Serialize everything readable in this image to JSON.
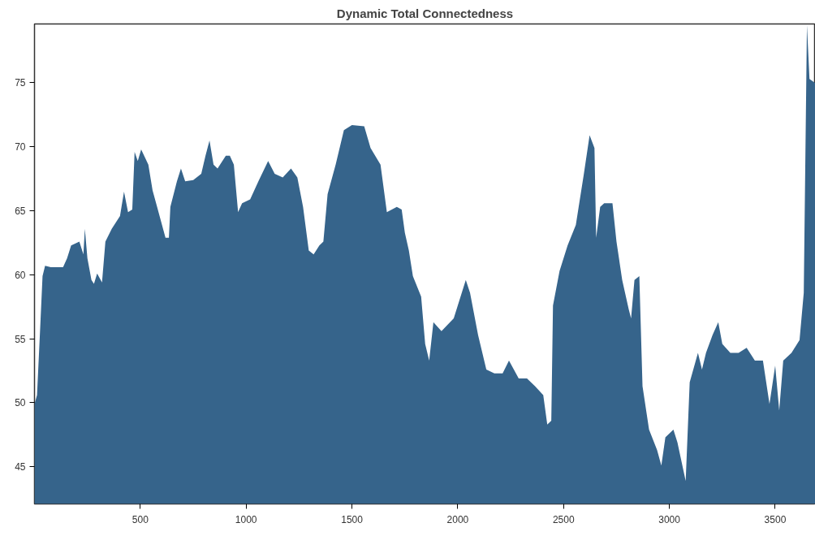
{
  "chart_data": {
    "type": "area",
    "title": "Dynamic Total Connectedness",
    "x": [
      0,
      12,
      27,
      38,
      50,
      77,
      135,
      154,
      173,
      212,
      231,
      238,
      250,
      269,
      281,
      296,
      319,
      335,
      365,
      404,
      423,
      442,
      462,
      473,
      488,
      504,
      538,
      558,
      596,
      619,
      635,
      642,
      673,
      692,
      712,
      750,
      788,
      808,
      827,
      846,
      865,
      904,
      923,
      942,
      962,
      981,
      1019,
      1058,
      1104,
      1135,
      1173,
      1212,
      1242,
      1269,
      1296,
      1319,
      1346,
      1365,
      1385,
      1423,
      1462,
      1500,
      1558,
      1588,
      1635,
      1665,
      1712,
      1735,
      1750,
      1769,
      1788,
      1827,
      1846,
      1865,
      1885,
      1923,
      1981,
      2000,
      2038,
      2058,
      2096,
      2135,
      2173,
      2212,
      2242,
      2288,
      2327,
      2365,
      2404,
      2423,
      2442,
      2450,
      2481,
      2519,
      2558,
      2596,
      2623,
      2646,
      2654,
      2673,
      2692,
      2731,
      2750,
      2777,
      2808,
      2819,
      2835,
      2858,
      2873,
      2904,
      2942,
      2962,
      2981,
      3019,
      3038,
      3077,
      3096,
      3135,
      3154,
      3173,
      3204,
      3231,
      3250,
      3288,
      3327,
      3365,
      3404,
      3442,
      3473,
      3500,
      3519,
      3538,
      3577,
      3615,
      3635,
      3650,
      3662,
      3688
    ],
    "series": [
      {
        "color": "#36648b",
        "values": [
          49.9,
          50.6,
          55.9,
          59.9,
          60.7,
          60.6,
          60.6,
          61.3,
          62.3,
          62.6,
          61.6,
          63.6,
          61.3,
          59.6,
          59.3,
          60.1,
          59.4,
          62.6,
          63.6,
          64.6,
          66.5,
          64.9,
          65.1,
          69.6,
          68.9,
          69.8,
          68.6,
          66.6,
          64.3,
          62.9,
          62.9,
          65.3,
          67.3,
          68.3,
          67.3,
          67.4,
          67.9,
          69.3,
          70.5,
          68.6,
          68.3,
          69.3,
          69.3,
          68.6,
          64.9,
          65.6,
          65.9,
          67.3,
          68.9,
          67.9,
          67.6,
          68.3,
          67.6,
          65.3,
          61.9,
          61.6,
          62.3,
          62.6,
          66.3,
          68.6,
          71.3,
          71.7,
          71.6,
          69.9,
          68.6,
          64.9,
          65.3,
          65.1,
          63.3,
          61.9,
          59.9,
          58.3,
          54.6,
          53.3,
          56.3,
          55.6,
          56.6,
          57.6,
          59.6,
          58.6,
          55.3,
          52.6,
          52.3,
          52.3,
          53.3,
          51.9,
          51.9,
          51.3,
          50.6,
          48.3,
          48.6,
          57.6,
          60.3,
          62.3,
          63.9,
          67.9,
          70.9,
          69.9,
          62.9,
          65.3,
          65.6,
          65.6,
          62.6,
          59.6,
          57.3,
          56.6,
          59.6,
          59.9,
          51.3,
          47.9,
          46.3,
          45.1,
          47.3,
          47.9,
          46.9,
          43.9,
          51.6,
          53.9,
          52.6,
          53.9,
          55.3,
          56.3,
          54.6,
          53.9,
          53.9,
          54.3,
          53.3,
          53.3,
          49.9,
          52.9,
          49.4,
          53.3,
          53.9,
          54.9,
          58.6,
          79.5,
          75.3,
          75.0
        ]
      }
    ],
    "xlim": [
      0,
      3690
    ],
    "ylim": [
      42.1,
      79.6
    ],
    "xticks": [
      500,
      1000,
      1500,
      2000,
      2500,
      3000,
      3500
    ],
    "yticks": [
      45,
      50,
      55,
      60,
      65,
      70,
      75
    ],
    "grid": false
  }
}
